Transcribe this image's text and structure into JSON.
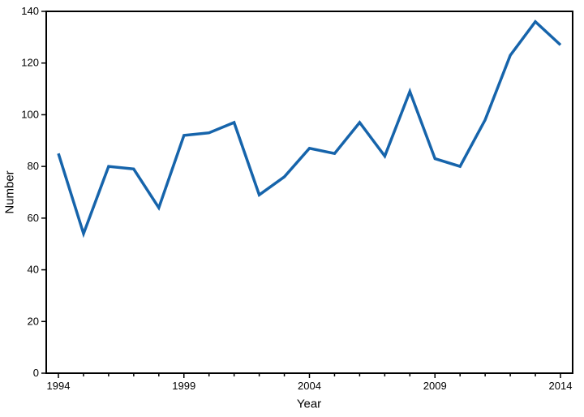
{
  "chart_data": {
    "type": "line",
    "title": "",
    "xlabel": "Year",
    "ylabel": "Number",
    "x": [
      1994,
      1995,
      1996,
      1997,
      1998,
      1999,
      2000,
      2001,
      2002,
      2003,
      2004,
      2005,
      2006,
      2007,
      2008,
      2009,
      2010,
      2011,
      2012,
      2013,
      2014
    ],
    "values": [
      85,
      54,
      80,
      79,
      64,
      92,
      93,
      97,
      69,
      76,
      87,
      85,
      97,
      84,
      109,
      83,
      80,
      98,
      123,
      136,
      127
    ],
    "ylim": [
      0,
      140
    ],
    "yticks": [
      0,
      20,
      40,
      60,
      80,
      100,
      120,
      140
    ],
    "xtick_labels": [
      1994,
      1999,
      2004,
      2009,
      2014
    ],
    "line_color": "#1664ab",
    "axis_color": "#000000",
    "grid": false,
    "legend_position": "none"
  }
}
